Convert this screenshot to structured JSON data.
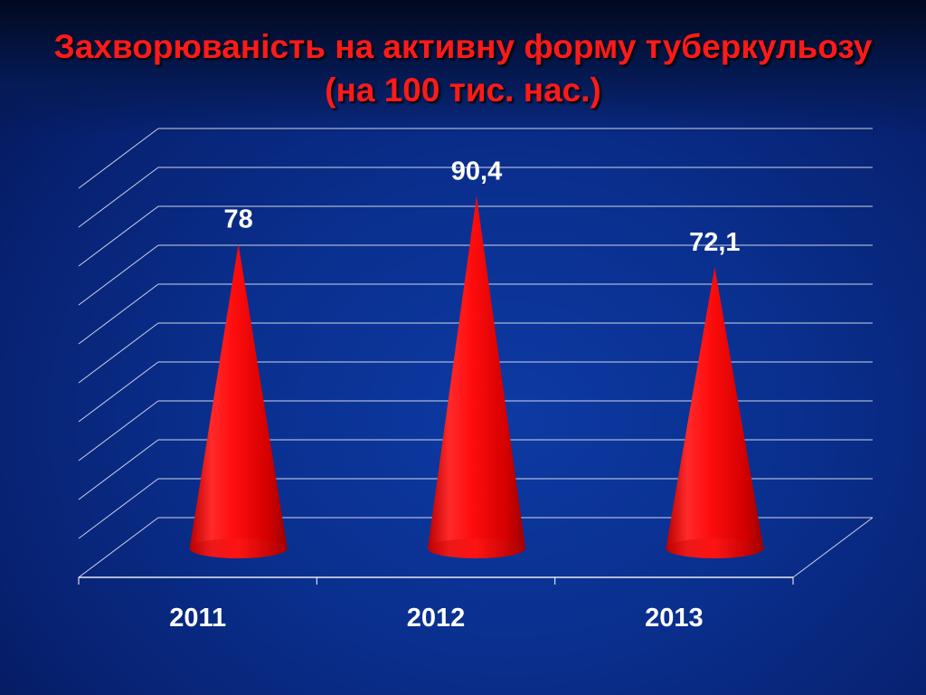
{
  "title_line1": "Захворюваність на активну форму туберкульозу",
  "title_line2": "(на 100 тис. нас.)",
  "colors": {
    "title": "#ff1a1a",
    "cone": "#ff0000",
    "gridline": "#ffffff",
    "label": "#ffffff"
  },
  "chart_data": {
    "type": "bar",
    "mark": "cone-3d",
    "title": "Захворюваність на активну форму туберкульозу (на 100 тис. нас.)",
    "categories": [
      "2011",
      "2012",
      "2013"
    ],
    "values": [
      78,
      90.4,
      72.1
    ],
    "data_labels": [
      "78",
      "90,4",
      "72,1"
    ],
    "ylim": [
      0,
      100
    ],
    "grid": true,
    "legend": "none",
    "xlabel": "",
    "ylabel": ""
  }
}
